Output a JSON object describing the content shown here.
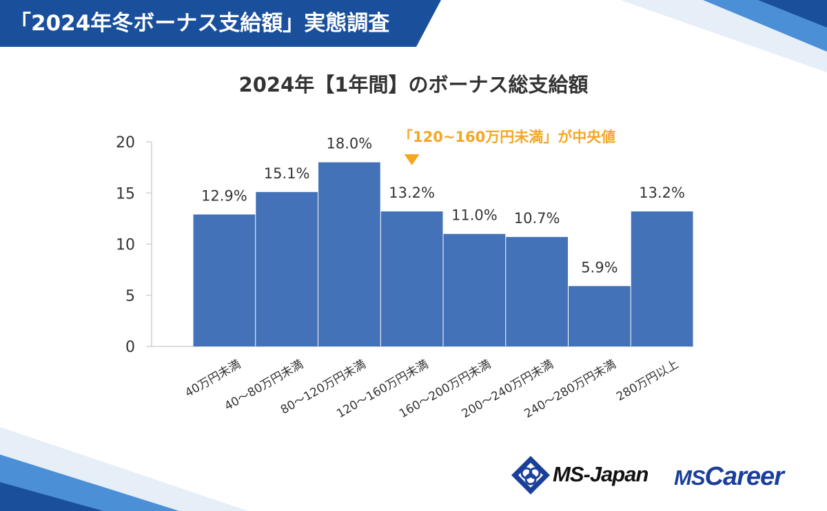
{
  "header": {
    "title": "「2024年冬ボーナス支給額」実態調査"
  },
  "colors": {
    "banner": "#1a4f9c",
    "bar": "#4472b8",
    "axis": "#d0d0d0",
    "median_note": "#f5a623",
    "text": "#333333"
  },
  "chart_data": {
    "type": "bar",
    "title": "2024年【1年間】のボーナス総支給額",
    "categories": [
      "40万円未満",
      "40～80万円未満",
      "80～120万円未満",
      "120～160万円未満",
      "160～200万円未満",
      "200～240万円未満",
      "240～280万円未満",
      "280万円以上"
    ],
    "values": [
      12.9,
      15.1,
      18.0,
      13.2,
      11.0,
      10.7,
      5.9,
      13.2
    ],
    "data_labels": [
      "12.9%",
      "15.1%",
      "18.0%",
      "13.2%",
      "11.0%",
      "10.7%",
      "5.9%",
      "13.2%"
    ],
    "yticks": [
      0,
      5,
      10,
      15,
      20
    ],
    "ylim": [
      0,
      20
    ],
    "xlabel": "",
    "ylabel": "",
    "annotation": {
      "text": "「120~160万円未満」が中央値",
      "category_index": 3
    }
  },
  "logos": {
    "ms_japan": "MS-Japan",
    "ms_career_prefix": "MS",
    "ms_career_suffix": "Career"
  }
}
